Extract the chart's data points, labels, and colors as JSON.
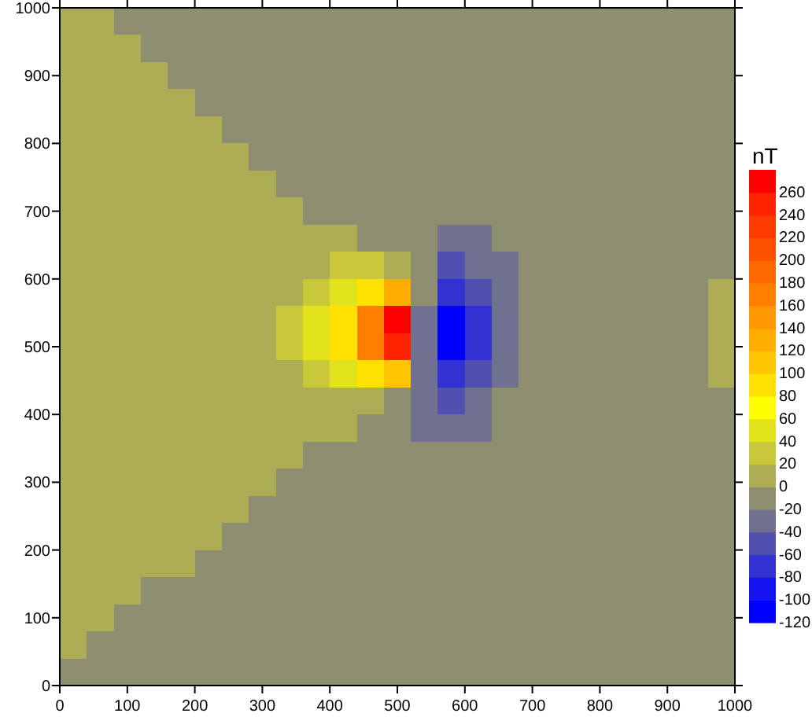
{
  "chart_data": {
    "type": "heatmap",
    "clabel": "nT",
    "x": [
      20,
      60,
      100,
      140,
      180,
      220,
      260,
      300,
      340,
      380,
      420,
      460,
      500,
      540,
      580,
      620,
      660,
      700,
      740,
      780,
      820,
      860,
      900,
      940,
      980
    ],
    "y": [
      980,
      940,
      900,
      860,
      820,
      780,
      740,
      700,
      660,
      620,
      580,
      540,
      500,
      460,
      420,
      380,
      340,
      300,
      260,
      220,
      180,
      140,
      100,
      60,
      20
    ],
    "xlim": [
      0,
      1000
    ],
    "xticks": [
      0,
      100,
      200,
      300,
      400,
      500,
      600,
      700,
      800,
      900,
      1000
    ],
    "ylim": [
      0,
      1000
    ],
    "yticks": [
      0,
      100,
      200,
      300,
      400,
      500,
      600,
      700,
      800,
      900,
      1000
    ],
    "clim": [
      -120,
      280
    ],
    "cticks": [
      -120,
      -100,
      -80,
      -60,
      -40,
      -20,
      0,
      20,
      40,
      60,
      80,
      100,
      120,
      140,
      160,
      180,
      200,
      220,
      240,
      260
    ],
    "colors": [
      "#0000ff",
      "#1414f0",
      "#3232d2",
      "#5050b0",
      "#707090",
      "#8e8e70",
      "#adad55",
      "#c8c83a",
      "#e3e31d",
      "#ffff00",
      "#ffe100",
      "#ffc600",
      "#ffae00",
      "#ff9700",
      "#ff8000",
      "#ff6a00",
      "#ff5200",
      "#ff3c00",
      "#ff2200",
      "#ff0000"
    ],
    "cells": [
      [
        10,
        10,
        -10,
        -10,
        -10,
        -10,
        -10,
        -10,
        -10,
        -10,
        -10,
        -10,
        -10,
        -10,
        -10,
        -10,
        -10,
        -10,
        -10,
        -10,
        -10,
        -10,
        -10,
        -10,
        -10
      ],
      [
        10,
        10,
        10,
        -10,
        -10,
        -10,
        -10,
        -10,
        -10,
        -10,
        -10,
        -10,
        -10,
        -10,
        -10,
        -10,
        -10,
        -10,
        -10,
        -10,
        -10,
        -10,
        -10,
        -10,
        -10
      ],
      [
        10,
        10,
        10,
        10,
        -10,
        -10,
        -10,
        -10,
        -10,
        -10,
        -10,
        -10,
        -10,
        -10,
        -10,
        -10,
        -10,
        -10,
        -10,
        -10,
        -10,
        -10,
        -10,
        -10,
        -10
      ],
      [
        10,
        10,
        10,
        10,
        10,
        -10,
        -10,
        -10,
        -10,
        -10,
        -10,
        -10,
        -10,
        -10,
        -10,
        -10,
        -10,
        -10,
        -10,
        -10,
        -10,
        -10,
        -10,
        -10,
        -10
      ],
      [
        10,
        10,
        10,
        10,
        10,
        10,
        -10,
        -10,
        -10,
        -10,
        -10,
        -10,
        -10,
        -10,
        -10,
        -10,
        -10,
        -10,
        -10,
        -10,
        -10,
        -10,
        -10,
        -10,
        -10
      ],
      [
        10,
        10,
        10,
        10,
        10,
        10,
        10,
        -10,
        -10,
        -10,
        -10,
        -10,
        -10,
        -10,
        -10,
        -10,
        -10,
        -10,
        -10,
        -10,
        -10,
        -10,
        -10,
        -10,
        -10
      ],
      [
        10,
        10,
        10,
        10,
        10,
        10,
        10,
        10,
        -10,
        -10,
        -10,
        -10,
        -10,
        -10,
        -10,
        -10,
        -10,
        -10,
        -10,
        -10,
        -10,
        -10,
        -10,
        -10,
        -10
      ],
      [
        10,
        10,
        10,
        10,
        10,
        10,
        10,
        10,
        10,
        -10,
        -10,
        -10,
        -10,
        -10,
        -10,
        -10,
        -10,
        -10,
        -10,
        -10,
        -10,
        -10,
        -10,
        -10,
        -10
      ],
      [
        10,
        10,
        10,
        10,
        10,
        10,
        10,
        10,
        10,
        10,
        10,
        -10,
        -10,
        -10,
        -30,
        -30,
        -10,
        -10,
        -10,
        -10,
        -10,
        -10,
        -10,
        -10,
        -10
      ],
      [
        10,
        10,
        10,
        10,
        10,
        10,
        10,
        10,
        10,
        10,
        30,
        30,
        10,
        -10,
        -50,
        -30,
        -30,
        -10,
        -10,
        -10,
        -10,
        -10,
        -10,
        -10,
        -10
      ],
      [
        10,
        10,
        10,
        10,
        10,
        10,
        10,
        10,
        10,
        30,
        50,
        90,
        130,
        -10,
        -70,
        -50,
        -30,
        -10,
        -10,
        -10,
        -10,
        -10,
        -10,
        -10,
        10
      ],
      [
        10,
        10,
        10,
        10,
        10,
        10,
        10,
        10,
        30,
        50,
        90,
        170,
        270,
        -30,
        -110,
        -70,
        -30,
        -10,
        -10,
        -10,
        -10,
        -10,
        -10,
        -10,
        10
      ],
      [
        10,
        10,
        10,
        10,
        10,
        10,
        10,
        10,
        30,
        50,
        90,
        170,
        250,
        -30,
        -110,
        -70,
        -30,
        -10,
        -10,
        -10,
        -10,
        -10,
        -10,
        -10,
        10
      ],
      [
        10,
        10,
        10,
        10,
        10,
        10,
        10,
        10,
        10,
        30,
        50,
        90,
        110,
        -30,
        -70,
        -50,
        -30,
        -10,
        -10,
        -10,
        -10,
        -10,
        -10,
        -10,
        10
      ],
      [
        10,
        10,
        10,
        10,
        10,
        10,
        10,
        10,
        10,
        10,
        10,
        10,
        -10,
        -30,
        -50,
        -30,
        -10,
        -10,
        -10,
        -10,
        -10,
        -10,
        -10,
        -10,
        -10
      ],
      [
        10,
        10,
        10,
        10,
        10,
        10,
        10,
        10,
        10,
        10,
        10,
        -10,
        -10,
        -30,
        -30,
        -30,
        -10,
        -10,
        -10,
        -10,
        -10,
        -10,
        -10,
        -10,
        -10
      ],
      [
        10,
        10,
        10,
        10,
        10,
        10,
        10,
        10,
        10,
        -10,
        -10,
        -10,
        -10,
        -10,
        -10,
        -10,
        -10,
        -10,
        -10,
        -10,
        -10,
        -10,
        -10,
        -10,
        -10
      ],
      [
        10,
        10,
        10,
        10,
        10,
        10,
        10,
        10,
        -10,
        -10,
        -10,
        -10,
        -10,
        -10,
        -10,
        -10,
        -10,
        -10,
        -10,
        -10,
        -10,
        -10,
        -10,
        -10,
        -10
      ],
      [
        10,
        10,
        10,
        10,
        10,
        10,
        10,
        -10,
        -10,
        -10,
        -10,
        -10,
        -10,
        -10,
        -10,
        -10,
        -10,
        -10,
        -10,
        -10,
        -10,
        -10,
        -10,
        -10,
        -10
      ],
      [
        10,
        10,
        10,
        10,
        10,
        10,
        -10,
        -10,
        -10,
        -10,
        -10,
        -10,
        -10,
        -10,
        -10,
        -10,
        -10,
        -10,
        -10,
        -10,
        -10,
        -10,
        -10,
        -10,
        -10
      ],
      [
        10,
        10,
        10,
        10,
        10,
        -10,
        -10,
        -10,
        -10,
        -10,
        -10,
        -10,
        -10,
        -10,
        -10,
        -10,
        -10,
        -10,
        -10,
        -10,
        -10,
        -10,
        -10,
        -10,
        -10
      ],
      [
        10,
        10,
        10,
        -10,
        -10,
        -10,
        -10,
        -10,
        -10,
        -10,
        -10,
        -10,
        -10,
        -10,
        -10,
        -10,
        -10,
        -10,
        -10,
        -10,
        -10,
        -10,
        -10,
        -10,
        -10
      ],
      [
        10,
        10,
        -10,
        -10,
        -10,
        -10,
        -10,
        -10,
        -10,
        -10,
        -10,
        -10,
        -10,
        -10,
        -10,
        -10,
        -10,
        -10,
        -10,
        -10,
        -10,
        -10,
        -10,
        -10,
        -10
      ],
      [
        10,
        -10,
        -10,
        -10,
        -10,
        -10,
        -10,
        -10,
        -10,
        -10,
        -10,
        -10,
        -10,
        -10,
        -10,
        -10,
        -10,
        -10,
        -10,
        -10,
        -10,
        -10,
        -10,
        -10,
        -10
      ],
      [
        -10,
        -10,
        -10,
        -10,
        -10,
        -10,
        -10,
        -10,
        -10,
        -10,
        -10,
        -10,
        -10,
        -10,
        -10,
        -10,
        -10,
        -10,
        -10,
        -10,
        -10,
        -10,
        -10,
        -10,
        -10
      ]
    ]
  }
}
